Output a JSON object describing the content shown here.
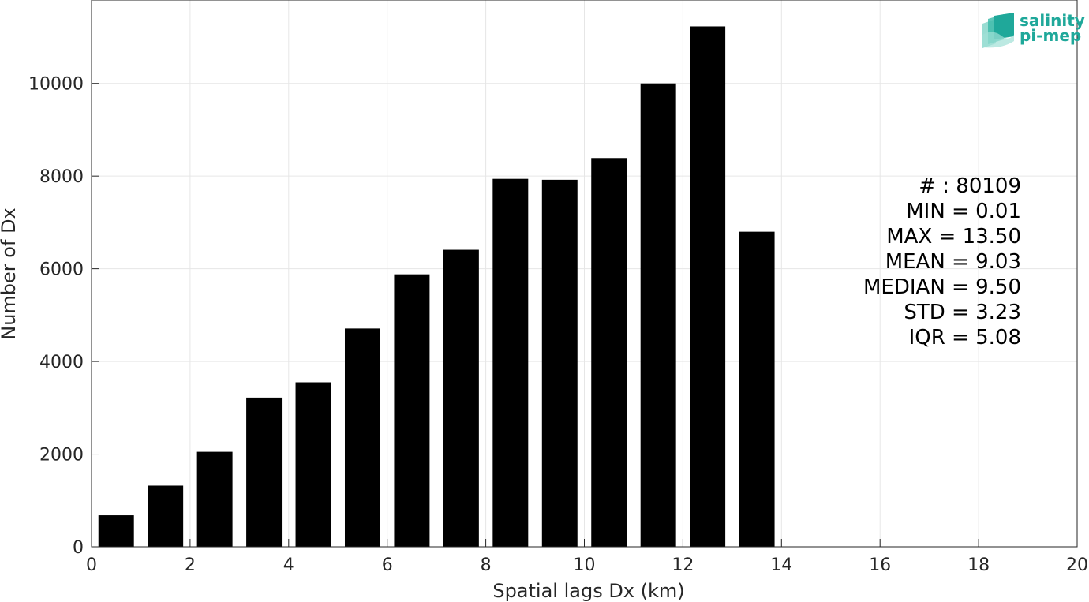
{
  "chart_data": {
    "type": "bar",
    "x": [
      0.5,
      1.5,
      2.5,
      3.5,
      4.5,
      5.5,
      6.5,
      7.5,
      8.5,
      9.5,
      10.5,
      11.5,
      12.5,
      13.5
    ],
    "values": [
      680,
      1320,
      2050,
      3220,
      3550,
      4710,
      5880,
      6410,
      7940,
      7920,
      8390,
      10000,
      11230,
      6800
    ],
    "bin_width": 1,
    "xlabel": "Spatial lags Dx (km)",
    "ylabel": "Number of Dx",
    "xlim": [
      0,
      20
    ],
    "ylim": [
      0,
      11800
    ],
    "xticks": [
      0,
      2,
      4,
      6,
      8,
      10,
      12,
      14,
      16,
      18,
      20
    ],
    "yticks": [
      0,
      2000,
      4000,
      6000,
      8000,
      10000
    ],
    "grid": true,
    "bar_color": "#000000",
    "stats": [
      "# : 80109",
      "MIN = 0.01",
      "MAX =  13.50",
      "MEAN = 9.03",
      "MEDIAN = 9.50",
      "STD = 3.23",
      "IQR = 5.08"
    ]
  },
  "logo": {
    "line1": "salinity",
    "line2": "pi-mep",
    "color": "#1fa89a"
  }
}
